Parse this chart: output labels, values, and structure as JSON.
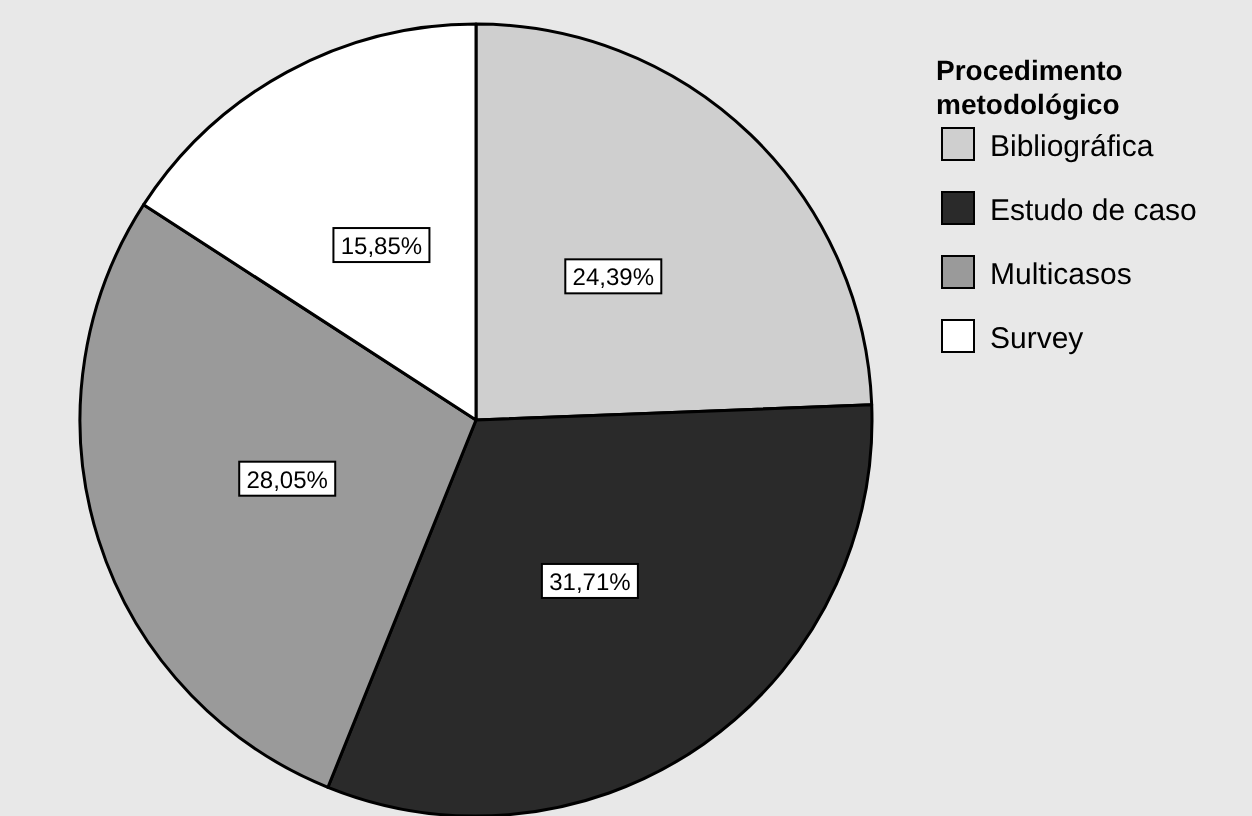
{
  "chart_data": {
    "type": "pie",
    "legend_title": "Procedimento metodológico",
    "categories": [
      "Bibliográfica",
      "Estudo de caso",
      "Multicasos",
      "Survey"
    ],
    "values": [
      24.39,
      31.71,
      28.05,
      15.85
    ],
    "value_labels": [
      "24,39%",
      "31,71%",
      "28,05%",
      "15,85%"
    ],
    "colors": [
      "#cfcfcf",
      "#2a2a2a",
      "#9a9a9a",
      "#ffffff"
    ],
    "legend": "top right"
  }
}
